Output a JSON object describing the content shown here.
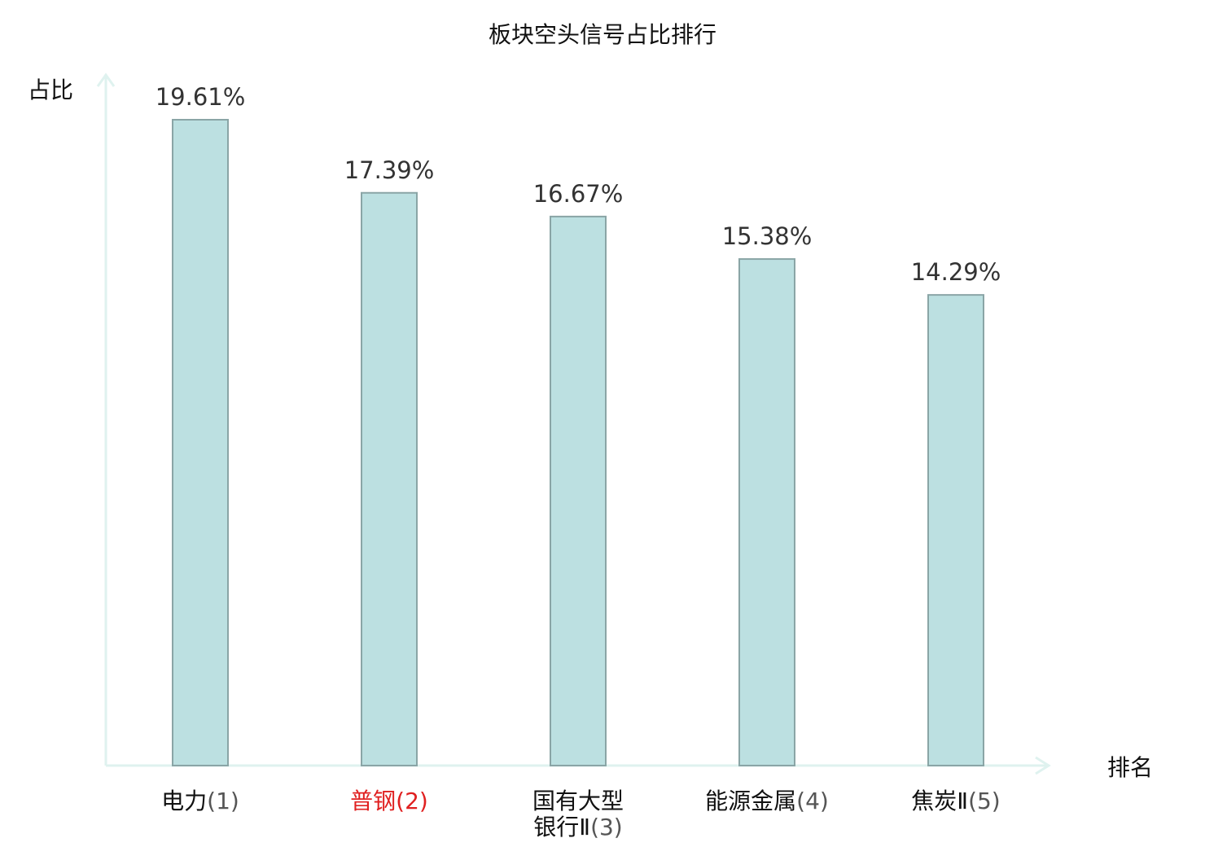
{
  "chart_data": {
    "type": "bar",
    "title": "板块空头信号占比排行",
    "xlabel": "排名",
    "ylabel": "占比",
    "categories": [
      {
        "lines": [
          {
            "name": "电力",
            "rank": "(1)"
          }
        ],
        "highlight": false
      },
      {
        "lines": [
          {
            "name": "普钢",
            "rank": "(2)"
          }
        ],
        "highlight": true
      },
      {
        "lines": [
          {
            "name": "国有大型",
            "rank": ""
          },
          {
            "name": "银行Ⅱ",
            "rank": "(3)"
          }
        ],
        "highlight": false
      },
      {
        "lines": [
          {
            "name": "能源金属",
            "rank": "(4)"
          }
        ],
        "highlight": false
      },
      {
        "lines": [
          {
            "name": "焦炭Ⅱ",
            "rank": "(5)"
          }
        ],
        "highlight": false
      }
    ],
    "values": [
      19.61,
      17.39,
      16.67,
      15.38,
      14.29
    ],
    "value_labels": [
      "19.61%",
      "17.39%",
      "16.67%",
      "15.38%",
      "14.29%"
    ],
    "ylim": [
      0,
      20
    ],
    "grid": false,
    "legend": "none",
    "colors": {
      "bar_fill": "#bce0e1",
      "bar_stroke": "#8aa5a6",
      "axis": "#dff2ef",
      "highlight_text": "#e02020",
      "text": "#111111",
      "rank_text": "#555555"
    }
  }
}
